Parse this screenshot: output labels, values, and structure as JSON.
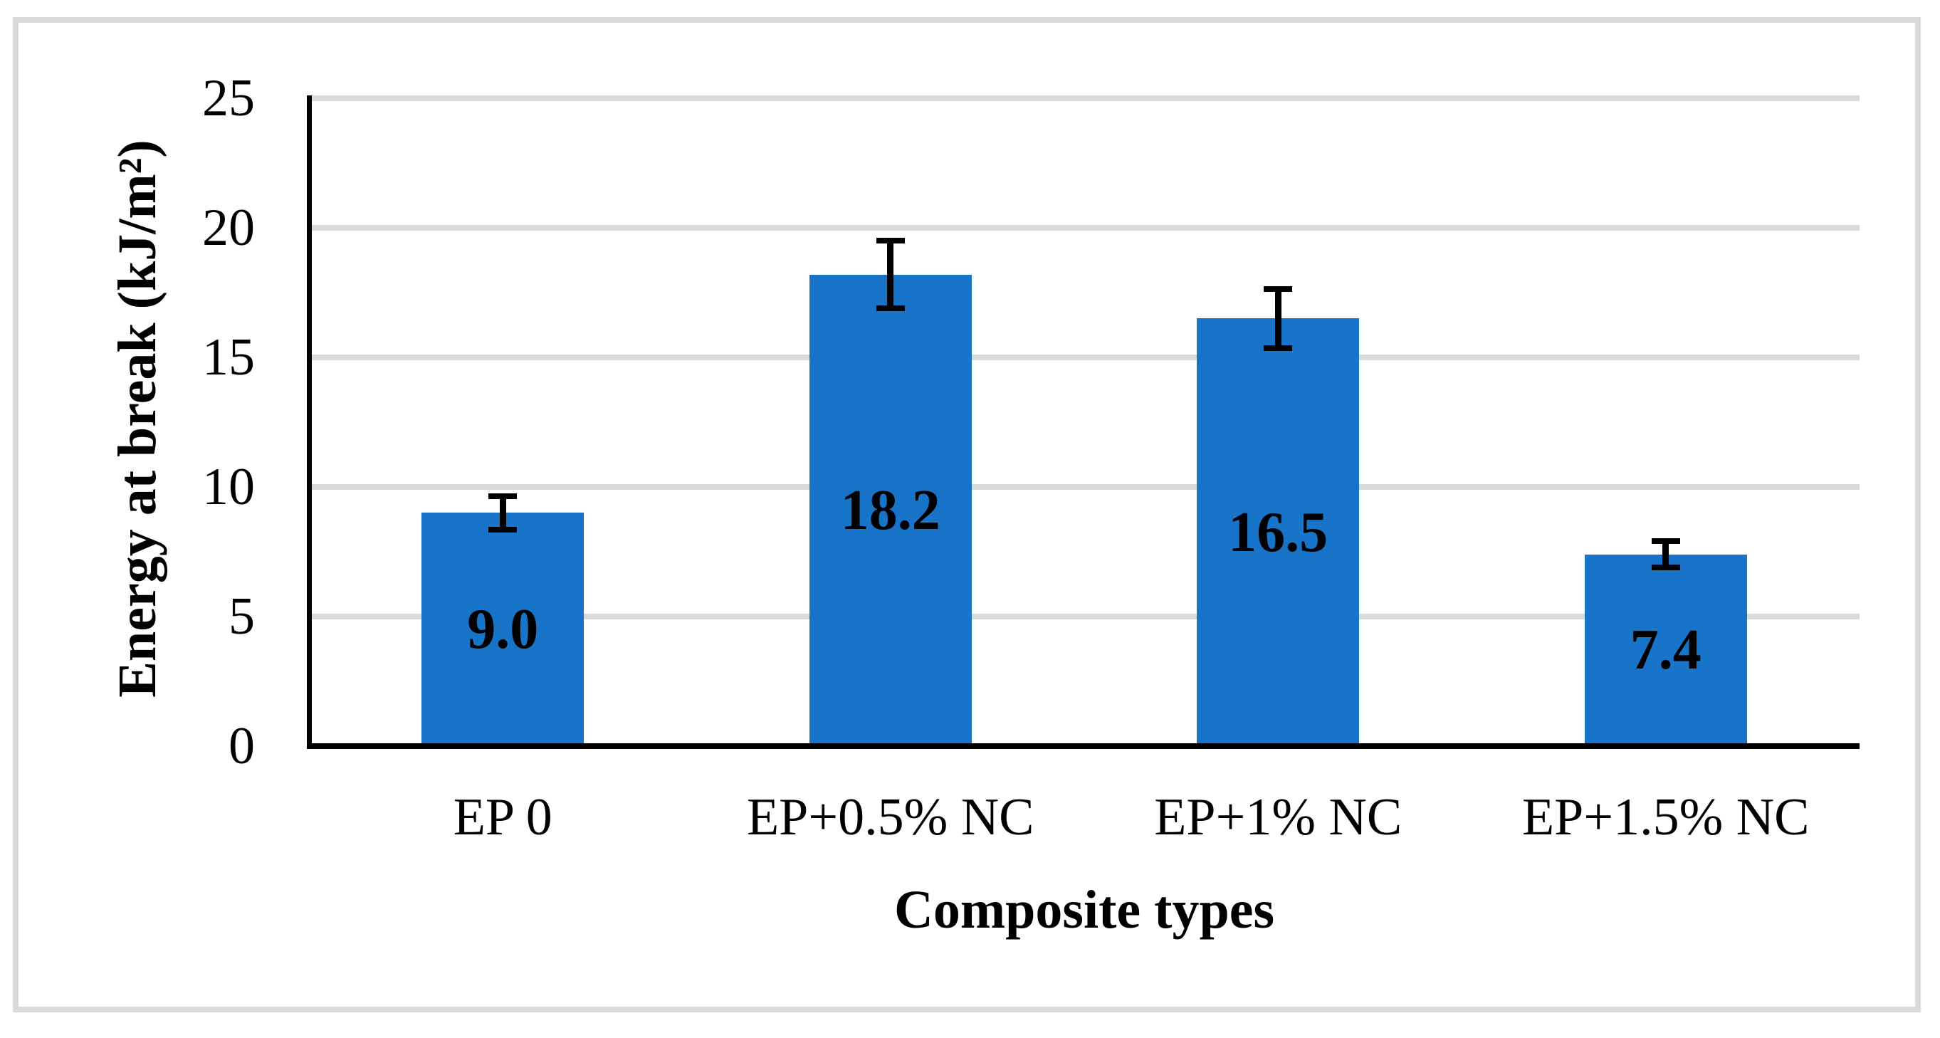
{
  "chart_data": {
    "type": "bar",
    "title": "",
    "xlabel": "Composite types",
    "ylabel": "Energy at break (kJ/m²)",
    "categories": [
      "EP 0",
      "EP+0.5% NC",
      "EP+1% NC",
      "EP+1.5% NC"
    ],
    "values": [
      9.0,
      18.2,
      16.5,
      7.4
    ],
    "value_labels": [
      "9.0",
      "18.2",
      "16.5",
      "7.4"
    ],
    "error_bars": {
      "symmetric": true,
      "values": [
        0.65,
        1.3,
        1.15,
        0.5
      ]
    },
    "ylim": [
      0,
      25
    ],
    "yticks": [
      0,
      5,
      10,
      15,
      20,
      25
    ],
    "grid": "horizontal",
    "legend_position": "none",
    "colors": {
      "bar": "#1874C8",
      "gridline": "#D9D9D9",
      "axis": "#000000",
      "frame_border": "#D9D9D9",
      "text": "#000000",
      "background": "#FFFFFF"
    }
  }
}
